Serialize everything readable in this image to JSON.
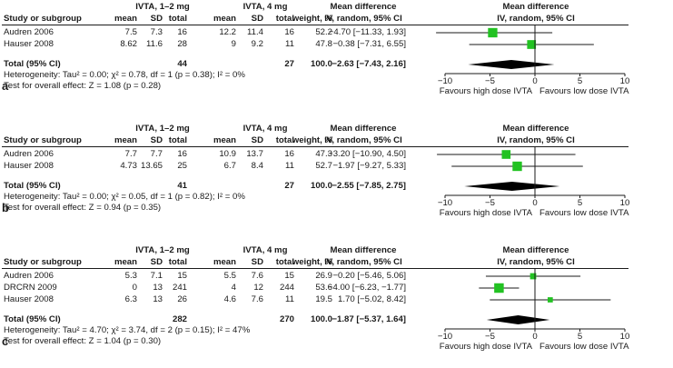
{
  "panels": [
    {
      "label": "a",
      "group1": "IVTA, 1–2 mg",
      "group2": "IVTA, 4 mg",
      "cols": {
        "study": "Study or subgroup",
        "mean": "mean",
        "sd": "SD",
        "total": "total",
        "weight": "weight, %"
      },
      "md_title": "Mean difference",
      "md_method": "IV, random, 95% CI",
      "studies": [
        {
          "name": "Audren 2006",
          "m1": "7.5",
          "sd1": "7.3",
          "n1": "16",
          "m2": "12.2",
          "sd2": "11.4",
          "n2": "16",
          "weight": "52.2",
          "ci_text": "−4.70 [−11.33, 1.93]"
        },
        {
          "name": "Hauser 2008",
          "m1": "8.62",
          "sd1": "11.6",
          "n1": "28",
          "m2": "9",
          "sd2": "9.2",
          "n2": "11",
          "weight": "47.8",
          "ci_text": "−0.38 [−7.31, 6.55]"
        }
      ],
      "total": {
        "name": "Total (95% CI)",
        "n1": "44",
        "n2": "27",
        "weight": "100.0",
        "ci_text": "−2.63 [−7.43, 2.16]"
      },
      "heterogeneity": "Heterogeneity: Tau² = 0.00; χ² = 0.78, df = 1 (p = 0.38); I² = 0%",
      "overall": "Test for overall effect: Z = 1.08 (p = 0.28)",
      "ticks": [
        "−10",
        "−5",
        "0",
        "5",
        "10"
      ],
      "favours_left": "Favours high dose IVTA",
      "favours_right": "Favours low dose IVTA"
    },
    {
      "label": "b",
      "group1": "IVTA, 1–2 mg",
      "group2": "IVTA, 4 mg",
      "cols": {
        "study": "Study or subgroup",
        "mean": "mean",
        "sd": "SD",
        "total": "total",
        "weight": "weight, %"
      },
      "md_title": "Mean difference",
      "md_method": "IV, random, 95% CI",
      "studies": [
        {
          "name": "Audren 2006",
          "m1": "7.7",
          "sd1": "7.7",
          "n1": "16",
          "m2": "10.9",
          "sd2": "13.7",
          "n2": "16",
          "weight": "47.3",
          "ci_text": "−3.20 [−10.90, 4.50]"
        },
        {
          "name": "Hauser 2008",
          "m1": "4.73",
          "sd1": "13.65",
          "n1": "25",
          "m2": "6.7",
          "sd2": "8.4",
          "n2": "11",
          "weight": "52.7",
          "ci_text": "−1.97 [−9.27, 5.33]"
        }
      ],
      "total": {
        "name": "Total (95% CI)",
        "n1": "41",
        "n2": "27",
        "weight": "100.0",
        "ci_text": "−2.55 [−7.85, 2.75]"
      },
      "heterogeneity": "Heterogeneity: Tau² = 0.00; χ² = 0.05, df = 1 (p = 0.82); I² = 0%",
      "overall": "Test for overall effect: Z = 0.94 (p = 0.35)",
      "ticks": [
        "−10",
        "−5",
        "0",
        "5",
        "10"
      ],
      "favours_left": "Favours high dose IVTA",
      "favours_right": "Favours low dose IVTA"
    },
    {
      "label": "c",
      "group1": "IVTA, 1–2 mg",
      "group2": "IVTA, 4 mg",
      "cols": {
        "study": "Study or subgroup",
        "mean": "mean",
        "sd": "SD",
        "total": "total",
        "weight": "weight, %"
      },
      "md_title": "Mean difference",
      "md_method": "IV, random, 95% CI",
      "studies": [
        {
          "name": "Audren 2006",
          "m1": "5.3",
          "sd1": "7.1",
          "n1": "15",
          "m2": "5.5",
          "sd2": "7.6",
          "n2": "15",
          "weight": "26.9",
          "ci_text": "−0.20 [−5.46, 5.06]"
        },
        {
          "name": "DRCRN 2009",
          "m1": "0",
          "sd1": "13",
          "n1": "241",
          "m2": "4",
          "sd2": "12",
          "n2": "244",
          "weight": "53.6",
          "ci_text": "−4.00 [−6.23, −1.77]"
        },
        {
          "name": "Hauser 2008",
          "m1": "6.3",
          "sd1": "13",
          "n1": "26",
          "m2": "4.6",
          "sd2": "7.6",
          "n2": "11",
          "weight": "19.5",
          "ci_text": "1.70 [−5.02, 8.42]"
        }
      ],
      "total": {
        "name": "Total (95% CI)",
        "n1": "282",
        "n2": "270",
        "weight": "100.0",
        "ci_text": "−1.87 [−5.37, 1.64]"
      },
      "heterogeneity": "Heterogeneity: Tau² = 4.70; χ² = 3.74, df = 2 (p = 0.15); I² = 47%",
      "overall": "Test for overall effect: Z = 1.04 (p = 0.30)",
      "ticks": [
        "−10",
        "−5",
        "0",
        "5",
        "10"
      ],
      "favours_left": "Favours high dose IVTA",
      "favours_right": "Favours low dose IVTA"
    }
  ],
  "chart_data": [
    {
      "type": "forest",
      "panel": "a",
      "xlim": [
        -10,
        10
      ],
      "ticks": [
        -10,
        -5,
        0,
        5,
        10
      ],
      "studies": [
        {
          "name": "Audren 2006",
          "md": -4.7,
          "lo": -11.33,
          "hi": 1.93,
          "weight": 52.2
        },
        {
          "name": "Hauser 2008",
          "md": -0.38,
          "lo": -7.31,
          "hi": 6.55,
          "weight": 47.8
        }
      ],
      "pooled": {
        "md": -2.63,
        "lo": -7.43,
        "hi": 2.16
      }
    },
    {
      "type": "forest",
      "panel": "b",
      "xlim": [
        -10,
        10
      ],
      "ticks": [
        -10,
        -5,
        0,
        5,
        10
      ],
      "studies": [
        {
          "name": "Audren 2006",
          "md": -3.2,
          "lo": -10.9,
          "hi": 4.5,
          "weight": 47.3
        },
        {
          "name": "Hauser 2008",
          "md": -1.97,
          "lo": -9.27,
          "hi": 5.33,
          "weight": 52.7
        }
      ],
      "pooled": {
        "md": -2.55,
        "lo": -7.85,
        "hi": 2.75
      }
    },
    {
      "type": "forest",
      "panel": "c",
      "xlim": [
        -10,
        10
      ],
      "ticks": [
        -10,
        -5,
        0,
        5,
        10
      ],
      "studies": [
        {
          "name": "Audren 2006",
          "md": -0.2,
          "lo": -5.46,
          "hi": 5.06,
          "weight": 26.9
        },
        {
          "name": "DRCRN 2009",
          "md": -4.0,
          "lo": -6.23,
          "hi": -1.77,
          "weight": 53.6
        },
        {
          "name": "Hauser 2008",
          "md": 1.7,
          "lo": -5.02,
          "hi": 8.42,
          "weight": 19.5
        }
      ],
      "pooled": {
        "md": -1.87,
        "lo": -5.37,
        "hi": 1.64
      }
    }
  ],
  "colors": {
    "study_square": "#22c222",
    "diamond": "#000000",
    "line": "#1a1a1a"
  }
}
